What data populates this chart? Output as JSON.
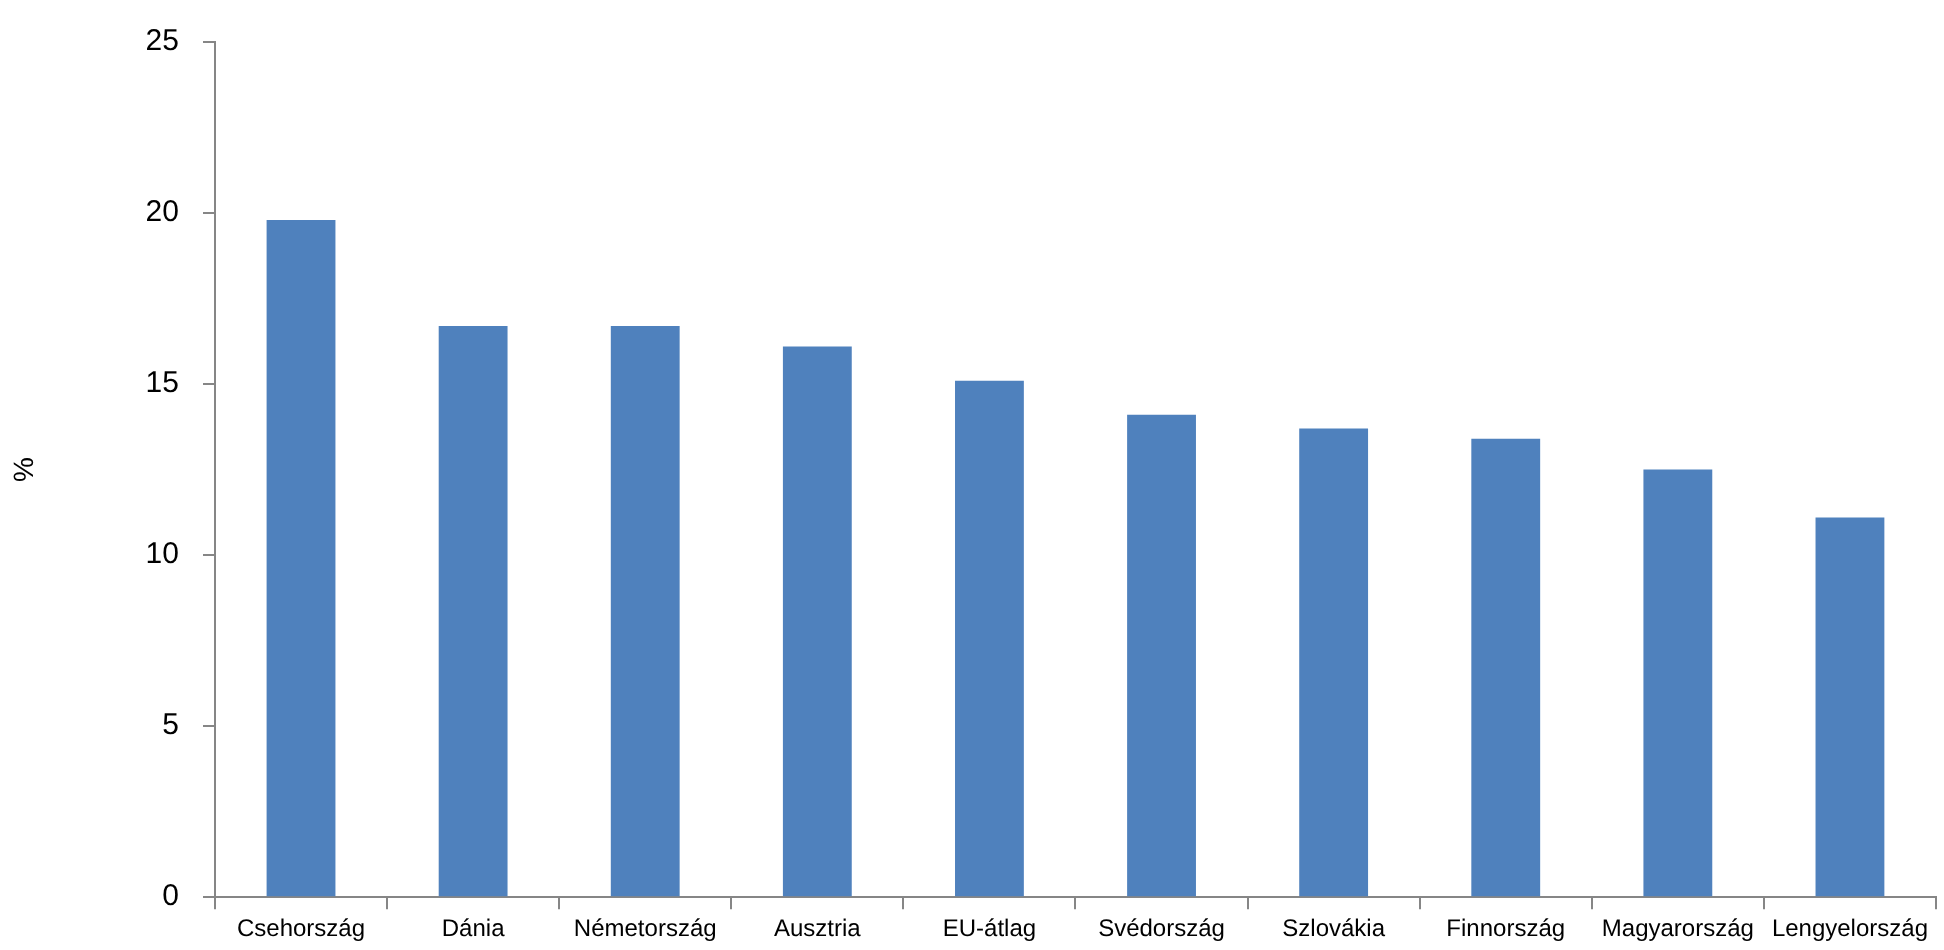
{
  "chart_data": {
    "type": "bar",
    "ylabel": "%",
    "categories": [
      "Csehország",
      "Dánia",
      "Németország",
      "Ausztria",
      "EU-átlag",
      "Svédország",
      "Szlovákia",
      "Finnország",
      "Magyarország",
      "Lengyelország"
    ],
    "values": [
      19.8,
      16.7,
      16.7,
      16.1,
      15.1,
      14.1,
      13.7,
      13.4,
      12.5,
      11.1
    ],
    "color": "#4f81bd",
    "ylim": [
      0,
      25
    ],
    "yticks": [
      0,
      5,
      10,
      15,
      20,
      25
    ],
    "grid": false
  }
}
